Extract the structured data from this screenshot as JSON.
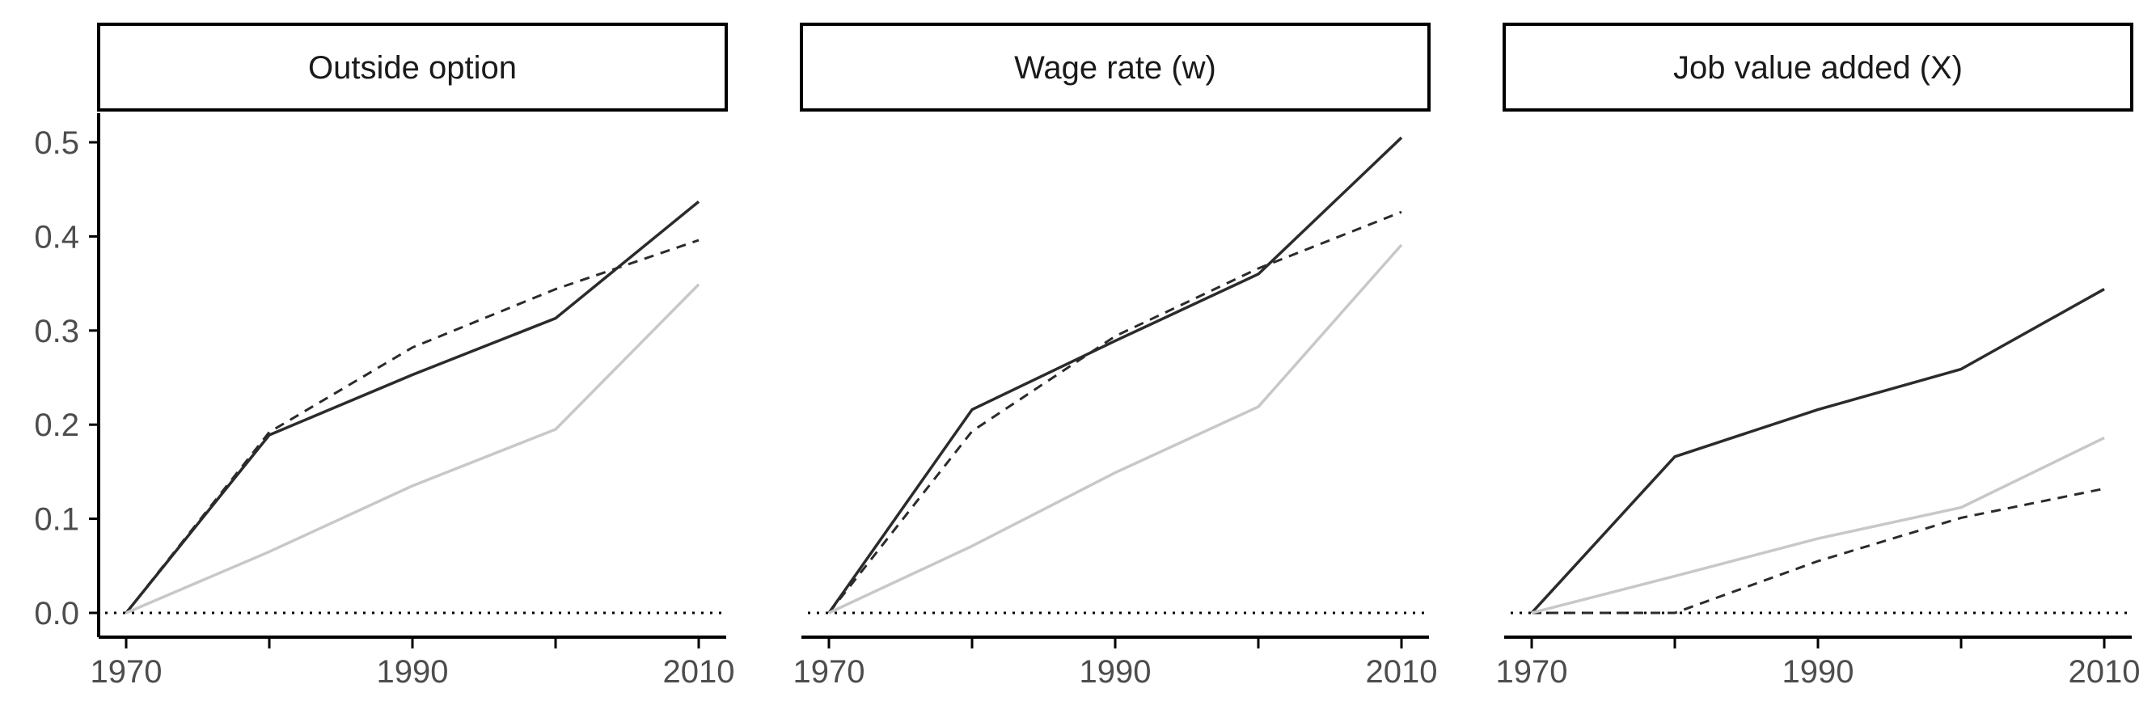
{
  "colors": {
    "dark_series": "#2b2b2b",
    "light_series": "#c8c8c8",
    "axis": "#000000",
    "tick_label": "#4d4d4d"
  },
  "chart_data": [
    {
      "type": "line",
      "title": "Outside option",
      "x": [
        1970,
        1980,
        1990,
        2000,
        2010
      ],
      "x_ticks": [
        "1970",
        "1990",
        "2010"
      ],
      "y_ticks": [
        "0.0",
        "0.1",
        "0.2",
        "0.3",
        "0.4",
        "0.5"
      ],
      "ylim": [
        0,
        0.52
      ],
      "reference_line": 0,
      "series": [
        {
          "style": "solid-dark",
          "values": [
            0,
            0.189,
            0.253,
            0.313,
            0.437
          ]
        },
        {
          "style": "dashed-dark",
          "values": [
            0,
            0.192,
            0.282,
            0.344,
            0.396
          ]
        },
        {
          "style": "solid-light",
          "values": [
            0,
            0.065,
            0.135,
            0.195,
            0.349
          ]
        }
      ]
    },
    {
      "type": "line",
      "title": "Wage rate (w)",
      "x": [
        1970,
        1980,
        1990,
        2000,
        2010
      ],
      "x_ticks": [
        "1970",
        "1990",
        "2010"
      ],
      "y_ticks": [
        "0.0",
        "0.1",
        "0.2",
        "0.3",
        "0.4",
        "0.5"
      ],
      "ylim": [
        0,
        0.52
      ],
      "reference_line": 0,
      "series": [
        {
          "style": "solid-dark",
          "values": [
            0,
            0.216,
            0.289,
            0.36,
            0.505
          ]
        },
        {
          "style": "dashed-dark",
          "values": [
            0,
            0.193,
            0.294,
            0.366,
            0.426
          ]
        },
        {
          "style": "solid-light",
          "values": [
            0,
            0.071,
            0.149,
            0.219,
            0.391
          ]
        }
      ]
    },
    {
      "type": "line",
      "title": "Job value added (X)",
      "x": [
        1970,
        1980,
        1990,
        2000,
        2010
      ],
      "x_ticks": [
        "1970",
        "1990",
        "2010"
      ],
      "y_ticks": [
        "0.0",
        "0.1",
        "0.2",
        "0.3",
        "0.4",
        "0.5"
      ],
      "ylim": [
        0,
        0.52
      ],
      "reference_line": 0,
      "series": [
        {
          "style": "solid-dark",
          "values": [
            0,
            0.166,
            0.216,
            0.259,
            0.344
          ]
        },
        {
          "style": "dashed-dark",
          "values": [
            0,
            0,
            0.055,
            0.101,
            0.132
          ]
        },
        {
          "style": "solid-light",
          "values": [
            0,
            0.039,
            0.079,
            0.112,
            0.186
          ]
        }
      ]
    }
  ]
}
